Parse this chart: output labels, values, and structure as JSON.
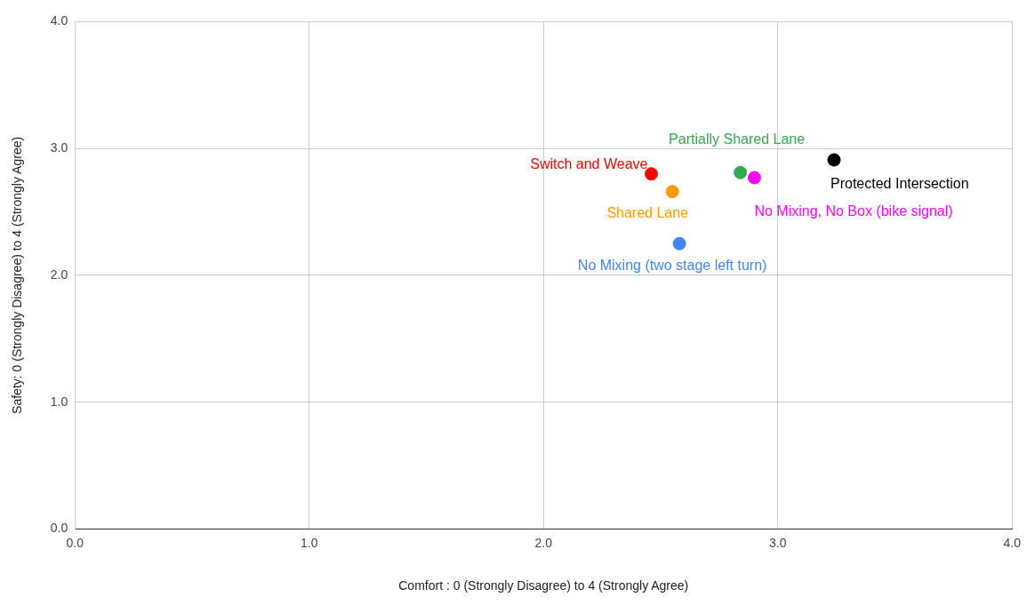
{
  "chart_data": {
    "type": "scatter",
    "xlabel": "Comfort : 0 (Strongly Disagree) to 4 (Strongly Agree)",
    "ylabel": "Safety: 0 (Strongly Disagree) to 4 (Strongly Agree)",
    "xlim": [
      0,
      4
    ],
    "ylim": [
      0,
      4
    ],
    "xticks": [
      {
        "value": 0,
        "label": "0.0"
      },
      {
        "value": 1,
        "label": "1.0"
      },
      {
        "value": 2,
        "label": "2.0"
      },
      {
        "value": 3,
        "label": "3.0"
      },
      {
        "value": 4,
        "label": "4.0"
      }
    ],
    "yticks": [
      {
        "value": 0,
        "label": "0.0"
      },
      {
        "value": 1,
        "label": "1.0"
      },
      {
        "value": 2,
        "label": "2.0"
      },
      {
        "value": 3,
        "label": "3.0"
      },
      {
        "value": 4,
        "label": "4.0"
      }
    ],
    "grid": true,
    "legend": false,
    "marker": "circle",
    "series": [
      {
        "name": "Switch and Weave",
        "color": "#ff0000",
        "x": [
          2.46
        ],
        "values": [
          2.8
        ]
      },
      {
        "name": "Shared Lane",
        "color": "#ff9900",
        "x": [
          2.55
        ],
        "values": [
          2.66
        ]
      },
      {
        "name": "No Mixing (two stage left turn)",
        "color": "#4285f4",
        "x": [
          2.58
        ],
        "values": [
          2.25
        ]
      },
      {
        "name": "Partially Shared Lane",
        "color": "#34a853",
        "x": [
          2.84
        ],
        "values": [
          2.81
        ]
      },
      {
        "name": "No Mixing, No Box (bike signal)",
        "color": "#ff00ff",
        "x": [
          2.9
        ],
        "values": [
          2.77
        ]
      },
      {
        "name": "Protected Intersection",
        "color": "#000000",
        "x": [
          3.24
        ],
        "values": [
          2.91
        ]
      }
    ]
  }
}
